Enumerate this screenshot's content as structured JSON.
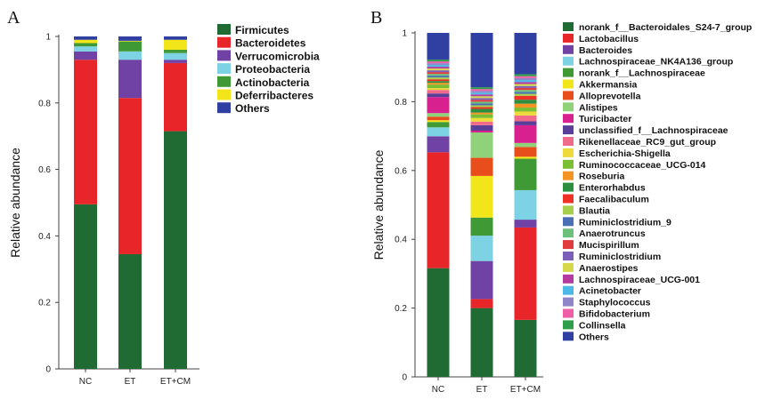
{
  "figure": {
    "panel_a_letter": "A",
    "panel_b_letter": "B"
  },
  "chart_data": [
    {
      "type": "bar",
      "stacked": true,
      "panel": "A",
      "categories": [
        "NC",
        "ET",
        "ET+CM"
      ],
      "ylabel": "Relative abundance",
      "xlabel": "",
      "ylim": [
        0,
        1
      ],
      "yticks": [
        "0",
        "0.2",
        "0.4",
        "0.6",
        "0.8",
        "1"
      ],
      "legend_position": "top-right",
      "series": [
        {
          "name": "Firmicutes",
          "color": "#1f6b33",
          "values": [
            0.495,
            0.345,
            0.715
          ]
        },
        {
          "name": "Bacteroidetes",
          "color": "#e8262a",
          "values": [
            0.435,
            0.47,
            0.205
          ]
        },
        {
          "name": "Verrucomicrobia",
          "color": "#7042a6",
          "values": [
            0.025,
            0.115,
            0.01
          ]
        },
        {
          "name": "Proteobacteria",
          "color": "#7dd3e3",
          "values": [
            0.015,
            0.025,
            0.02
          ]
        },
        {
          "name": "Actinobacteria",
          "color": "#3f9a35",
          "values": [
            0.01,
            0.03,
            0.01
          ]
        },
        {
          "name": "Deferribacteres",
          "color": "#f2e51a",
          "values": [
            0.01,
            0.002,
            0.03
          ]
        },
        {
          "name": "Others",
          "color": "#2f3fa2",
          "values": [
            0.01,
            0.013,
            0.01
          ]
        }
      ]
    },
    {
      "type": "bar",
      "stacked": true,
      "panel": "B",
      "categories": [
        "NC",
        "ET",
        "ET+CM"
      ],
      "ylabel": "Relative abundance",
      "xlabel": "",
      "ylim": [
        0,
        1
      ],
      "yticks": [
        "0",
        "0.2",
        "0.4",
        "0.6",
        "0.8",
        "1"
      ],
      "legend_position": "right",
      "series": [
        {
          "name": "norank_f__Bacteroidales_S24-7_group",
          "color": "#1f6b33",
          "values": [
            0.305,
            0.19,
            0.145
          ]
        },
        {
          "name": "Lactobacillus",
          "color": "#e8262a",
          "values": [
            0.325,
            0.025,
            0.235
          ]
        },
        {
          "name": "Bacteroides",
          "color": "#7042a6",
          "values": [
            0.045,
            0.105,
            0.02
          ]
        },
        {
          "name": "Lachnospiraceae_NK4A136_group",
          "color": "#7dd3e3",
          "values": [
            0.025,
            0.07,
            0.075
          ]
        },
        {
          "name": "norank_f__Lachnospiraceae",
          "color": "#3f9a35",
          "values": [
            0.015,
            0.05,
            0.08
          ]
        },
        {
          "name": "Akkermansia",
          "color": "#f2e51a",
          "values": [
            0.005,
            0.115,
            0.005
          ]
        },
        {
          "name": "Alloprevotella",
          "color": "#e84d1c",
          "values": [
            0.01,
            0.05,
            0.025
          ]
        },
        {
          "name": "Alistipes",
          "color": "#8fd27a",
          "values": [
            0.01,
            0.07,
            0.01
          ]
        },
        {
          "name": "Turicibacter",
          "color": "#d8218e",
          "values": [
            0.045,
            0.005,
            0.045
          ]
        },
        {
          "name": "unclassified_f__Lachnospiraceae",
          "color": "#5a3f9a",
          "values": [
            0.01,
            0.015,
            0.01
          ]
        },
        {
          "name": "Rikenellaceae_RC9_gut_group",
          "color": "#f06a8a",
          "values": [
            0.01,
            0.01,
            0.015
          ]
        },
        {
          "name": "Escherichia-Shigella",
          "color": "#eeda3a",
          "values": [
            0.005,
            0.01,
            0.01
          ]
        },
        {
          "name": "Ruminococcaceae_UCG-014",
          "color": "#79be33",
          "values": [
            0.01,
            0.01,
            0.01
          ]
        },
        {
          "name": "Roseburia",
          "color": "#f29324",
          "values": [
            0.005,
            0.005,
            0.01
          ]
        },
        {
          "name": "Enterorhabdus",
          "color": "#2b8f3f",
          "values": [
            0.005,
            0.01,
            0.01
          ]
        },
        {
          "name": "Faecalibaculum",
          "color": "#ee3124",
          "values": [
            0.005,
            0.005,
            0.01
          ]
        },
        {
          "name": "Blautia",
          "color": "#a6d04c",
          "values": [
            0.005,
            0.005,
            0.005
          ]
        },
        {
          "name": "Ruminiclostridium_9",
          "color": "#4a6fb5",
          "values": [
            0.005,
            0.005,
            0.005
          ]
        },
        {
          "name": "Anaerotruncus",
          "color": "#6cc07a",
          "values": [
            0.005,
            0.005,
            0.005
          ]
        },
        {
          "name": "Mucispirillum",
          "color": "#e23b3b",
          "values": [
            0.005,
            0.005,
            0.005
          ]
        },
        {
          "name": "Ruminiclostridium",
          "color": "#7b5fb8",
          "values": [
            0.005,
            0.005,
            0.005
          ]
        },
        {
          "name": "Anaerostipes",
          "color": "#d4d84a",
          "values": [
            0.005,
            0.005,
            0.005
          ]
        },
        {
          "name": "Lachnospiraceae_UCG-001",
          "color": "#b43aa0",
          "values": [
            0.005,
            0.005,
            0.005
          ]
        },
        {
          "name": "Acinetobacter",
          "color": "#4bb8e5",
          "values": [
            0.005,
            0.005,
            0.005
          ]
        },
        {
          "name": "Staphylococcus",
          "color": "#8f86c9",
          "values": [
            0.005,
            0.005,
            0.005
          ]
        },
        {
          "name": "Bifidobacterium",
          "color": "#ee5fa7",
          "values": [
            0.005,
            0.005,
            0.005
          ]
        },
        {
          "name": "Collinsella",
          "color": "#2f9e4a",
          "values": [
            0.005,
            0.005,
            0.005
          ]
        },
        {
          "name": "Others",
          "color": "#2f3fa2",
          "values": [
            0.075,
            0.15,
            0.105
          ]
        }
      ]
    }
  ]
}
